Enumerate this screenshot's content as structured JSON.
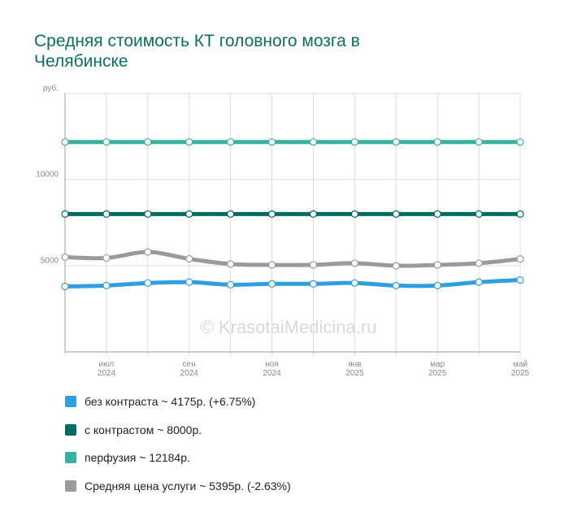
{
  "chart_data": {
    "type": "line",
    "title": "Средняя стоимость КТ головного мозга в Челябинске",
    "watermark": "© KrasotaiMedicina.ru",
    "categories": [
      null,
      "июл 2024",
      null,
      "сен 2024",
      null,
      "ноя 2024",
      null,
      "янв 2025",
      null,
      "мар 2025",
      null,
      "май 2025"
    ],
    "ylim": [
      0,
      15000
    ],
    "yticks": [
      5000,
      10000,
      {
        "value": 15000,
        "label": "руб."
      }
    ],
    "grid": true,
    "legend": "bottom",
    "series": [
      {
        "name": "без контраста ~ 4175р. (+6.75%)",
        "color": "#2f9fe0",
        "values": [
          3800,
          3850,
          4000,
          4050,
          3900,
          3950,
          3950,
          4000,
          3850,
          3850,
          4050,
          4175
        ]
      },
      {
        "name": "с контрастом ~ 8000р.",
        "color": "#006b5f",
        "values": [
          8000,
          8000,
          8000,
          8000,
          8000,
          8000,
          8000,
          8000,
          8000,
          8000,
          8000,
          8000
        ]
      },
      {
        "name": "перфузия ~ 12184р.",
        "color": "#3ab0a2",
        "values": [
          12184,
          12184,
          12184,
          12184,
          12184,
          12184,
          12184,
          12184,
          12184,
          12184,
          12184,
          12184
        ]
      },
      {
        "name": "Средняя цена услуги ~ 5395р. (-2.63%)",
        "color": "#9a9a9a",
        "values": [
          5500,
          5450,
          5800,
          5400,
          5100,
          5050,
          5050,
          5150,
          5000,
          5050,
          5150,
          5395
        ]
      }
    ]
  }
}
